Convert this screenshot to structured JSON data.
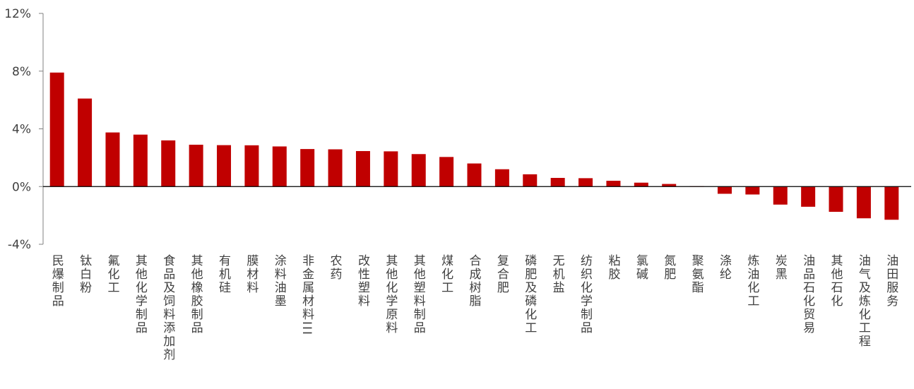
{
  "chart_data": {
    "type": "bar",
    "title": "",
    "xlabel": "",
    "ylabel": "",
    "ylim": [
      -4,
      12
    ],
    "yticks": [
      -4,
      0,
      4,
      8,
      12
    ],
    "ytick_labels": [
      "-4%",
      "0%",
      "4%",
      "8%",
      "12%"
    ],
    "grid": false,
    "legend": "none",
    "bar_color": "#C00000",
    "categories": [
      "民爆制品",
      "钛白粉",
      "氟化工",
      "其他化学制品",
      "食品及饲料添加剂",
      "其他橡胶制品",
      "有机硅",
      "膜材料",
      "涂料油墨",
      "非金属材料III",
      "农药",
      "改性塑料",
      "其他化学原料",
      "其他塑料制品",
      "煤化工",
      "合成树脂",
      "复合肥",
      "磷肥及磷化工",
      "无机盐",
      "纺织化学制品",
      "粘胶",
      "氯碱",
      "氮肥",
      "聚氨酯",
      "涤纶",
      "炼油化工",
      "炭黑",
      "油品石化贸易",
      "其他石化",
      "油气及炼化工程",
      "油田服务"
    ],
    "values": [
      7.9,
      6.1,
      3.75,
      3.6,
      3.2,
      2.9,
      2.87,
      2.86,
      2.78,
      2.6,
      2.58,
      2.46,
      2.44,
      2.25,
      2.05,
      1.6,
      1.2,
      0.85,
      0.6,
      0.58,
      0.4,
      0.27,
      0.18,
      0.02,
      -0.5,
      -0.55,
      -1.25,
      -1.4,
      -1.75,
      -2.2,
      -2.3
    ]
  }
}
